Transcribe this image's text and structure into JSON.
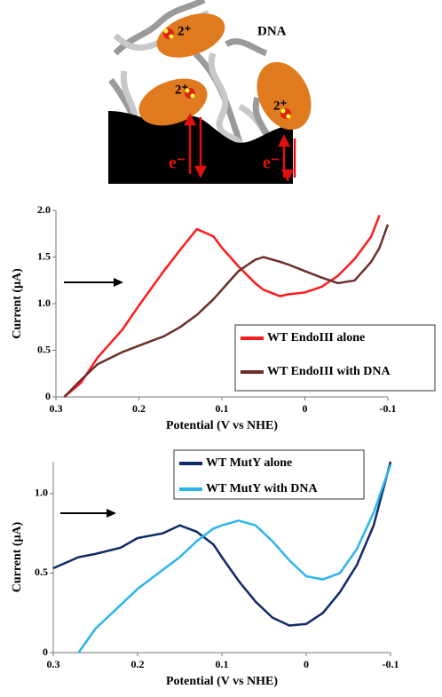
{
  "diagram": {
    "label": "DNA",
    "ion_charges": [
      "2⁺",
      "2⁺",
      "2⁺"
    ],
    "electrons": [
      "e⁻",
      "e⁻"
    ]
  },
  "chart_data": [
    {
      "type": "line",
      "x_label": "Potential (V vs NHE)",
      "y_label": "Current (μA)",
      "x": [
        0.29,
        0.27,
        0.25,
        0.22,
        0.2,
        0.17,
        0.15,
        0.13,
        0.11,
        0.1,
        0.08,
        0.06,
        0.05,
        0.03,
        0.02,
        0,
        -0.02,
        -0.04,
        -0.06,
        -0.08,
        -0.09,
        -0.1
      ],
      "series": [
        {
          "name": "WT EndoIII alone",
          "color": "#ff1a1a",
          "values": [
            0,
            0.15,
            0.42,
            0.72,
            0.98,
            1.35,
            1.58,
            1.8,
            1.72,
            1.6,
            1.4,
            1.22,
            1.15,
            1.08,
            1.1,
            1.12,
            1.18,
            1.3,
            1.48,
            1.72,
            1.95,
            null
          ]
        },
        {
          "name": "WT EndoIII with DNA",
          "color": "#6b2e2a",
          "values": [
            0,
            0.18,
            0.35,
            0.48,
            0.55,
            0.65,
            0.75,
            0.88,
            1.05,
            1.15,
            1.35,
            1.47,
            1.5,
            1.45,
            1.42,
            1.35,
            1.28,
            1.22,
            1.25,
            1.45,
            1.6,
            1.85
          ]
        }
      ],
      "xlim": [
        0.3,
        -0.1
      ],
      "xticks": [
        0.3,
        0.2,
        0.1,
        0,
        -0.1
      ],
      "ylim": [
        0,
        2
      ],
      "yticks": [
        0,
        0.5,
        {
          "value": 1,
          "label": "1.0"
        },
        1.5,
        {
          "value": 2,
          "label": "2.0"
        }
      ]
    },
    {
      "type": "line",
      "x_label": "Potential (V vs NHE)",
      "y_label": "Current (μA)",
      "x": [
        0.3,
        0.27,
        0.25,
        0.22,
        0.2,
        0.17,
        0.15,
        0.13,
        0.11,
        0.1,
        0.08,
        0.06,
        0.04,
        0.02,
        0,
        -0.02,
        -0.04,
        -0.06,
        -0.08,
        -0.1
      ],
      "series": [
        {
          "name": "WT MutY alone",
          "color": "#0f2a66",
          "values": [
            0.53,
            0.6,
            0.62,
            0.66,
            0.72,
            0.75,
            0.8,
            0.76,
            0.68,
            0.6,
            0.45,
            0.32,
            0.22,
            0.17,
            0.18,
            0.25,
            0.38,
            0.55,
            0.8,
            1.2
          ]
        },
        {
          "name": "WT MutY with DNA",
          "color": "#2ab5ea",
          "values": [
            null,
            0,
            0.15,
            0.3,
            0.4,
            0.52,
            0.6,
            0.7,
            0.78,
            0.8,
            0.83,
            0.8,
            0.7,
            0.58,
            0.48,
            0.46,
            0.5,
            0.65,
            0.88,
            1.18
          ]
        }
      ],
      "xlim": [
        0.3,
        -0.1
      ],
      "xticks": [
        0.3,
        0.2,
        0.1,
        0,
        -0.1
      ],
      "ylim": [
        0,
        1.2
      ],
      "yticks": [
        0,
        0.5,
        {
          "value": 1,
          "label": "1.0"
        }
      ]
    }
  ]
}
